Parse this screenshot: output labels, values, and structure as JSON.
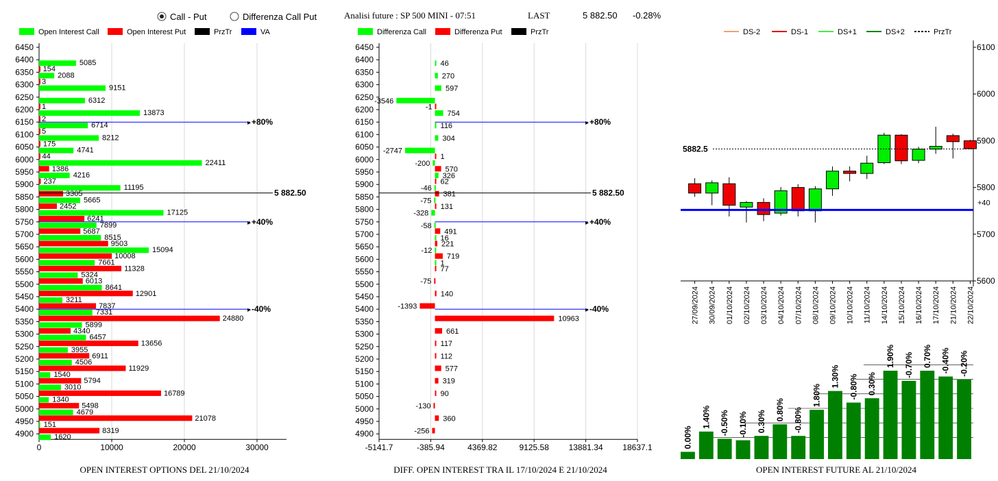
{
  "header": {
    "radio_options": [
      "Call - Put",
      "Differenza Call Put"
    ],
    "selected_radio": 0,
    "title": "Analisi future : SP 500 MINI - 07:51",
    "last_label": "LAST",
    "last_value": "5 882.50",
    "change": "-0.28%"
  },
  "colors": {
    "call": "#00ff00",
    "put": "#ff0000",
    "prztr": "#000000",
    "va": "#0000ff",
    "candle_up": "#00ee00",
    "candle_down": "#ee0000",
    "future_bar": "#008000"
  },
  "chart_data": [
    {
      "type": "bar",
      "orientation": "horizontal",
      "title": "OPEN INTEREST OPTIONS DEL 21/10/2024",
      "legend": [
        "Open Interest Call",
        "Open Interest Put",
        "PrzTr",
        "VA"
      ],
      "categories": [
        6450,
        6400,
        6350,
        6300,
        6250,
        6200,
        6150,
        6100,
        6050,
        6000,
        5950,
        5900,
        5850,
        5800,
        5750,
        5700,
        5650,
        5600,
        5550,
        5500,
        5450,
        5400,
        5350,
        5300,
        5250,
        5200,
        5150,
        5100,
        5050,
        5000,
        4950,
        4900
      ],
      "series": [
        {
          "name": "Open Interest Call",
          "values": [
            null,
            5085,
            2088,
            9151,
            6312,
            13873,
            6714,
            8212,
            4741,
            22411,
            4216,
            11195,
            5665,
            17125,
            7899,
            8515,
            15094,
            7661,
            5324,
            8641,
            3211,
            7331,
            5899,
            6457,
            3955,
            4506,
            1540,
            3010,
            1340,
            4679,
            151,
            1620
          ]
        },
        {
          "name": "Open Interest Put",
          "values": [
            null,
            154,
            3,
            null,
            1,
            2,
            5,
            175,
            44,
            1386,
            237,
            3305,
            2452,
            6241,
            5687,
            9503,
            10008,
            11328,
            6013,
            12901,
            7837,
            24880,
            4340,
            13656,
            6911,
            11929,
            5794,
            16789,
            5498,
            21078,
            8319,
            null
          ]
        }
      ],
      "reference_lines": [
        {
          "level": 6150,
          "label": "+80%",
          "color": "#0000ff"
        },
        {
          "level": 5882.5,
          "label": "5 882.50",
          "color": "#000000"
        },
        {
          "level": 5750,
          "label": "+40%",
          "color": "#0000ff"
        },
        {
          "level": 5400,
          "label": "-40%",
          "color": "#0000ff"
        }
      ],
      "xticks": [
        0,
        10000,
        20000,
        30000
      ],
      "xlim": [
        0,
        35000
      ]
    },
    {
      "type": "bar",
      "orientation": "horizontal",
      "title": "DIFF. OPEN INTEREST TRA IL 17/10/2024 E 21/10/2024",
      "legend": [
        "Differenza Call",
        "Differenza Put",
        "PrzTr"
      ],
      "categories": [
        6450,
        6400,
        6350,
        6300,
        6250,
        6200,
        6150,
        6100,
        6050,
        6000,
        5950,
        5900,
        5850,
        5800,
        5750,
        5700,
        5650,
        5600,
        5550,
        5500,
        5450,
        5400,
        5350,
        5300,
        5250,
        5200,
        5150,
        5100,
        5050,
        5000,
        4950,
        4900
      ],
      "series": [
        {
          "name": "Differenza Call",
          "values": [
            null,
            46,
            270,
            597,
            -3546,
            754,
            116,
            304,
            -2747,
            -200,
            326,
            -46,
            -75,
            -328,
            -58,
            16,
            -12,
            1,
            null,
            null,
            null,
            null,
            null,
            null,
            null,
            null,
            null,
            null,
            null,
            null,
            null,
            null
          ]
        },
        {
          "name": "Differenza Put",
          "values": [
            null,
            null,
            null,
            null,
            -1,
            null,
            null,
            null,
            1,
            570,
            62,
            381,
            131,
            null,
            491,
            221,
            719,
            77,
            -75,
            140,
            -1393,
            10963,
            661,
            117,
            112,
            577,
            319,
            90,
            -130,
            360,
            -256,
            null
          ]
        }
      ],
      "reference_lines": [
        {
          "level": 6150,
          "label": "+80%",
          "color": "#0000ff"
        },
        {
          "level": 5882.5,
          "label": "5 882.50",
          "color": "#000000"
        },
        {
          "level": 5750,
          "label": "+40%",
          "color": "#0000ff"
        },
        {
          "level": 5400,
          "label": "-40%",
          "color": "#0000ff"
        }
      ],
      "xticks": [
        -5141.7,
        -385.94,
        4369.82,
        9125.58,
        13881.34,
        18637.1
      ],
      "xtick_labels": [
        "-5141.7",
        "-385.94",
        "4369.82",
        "9125.58",
        "13881.34",
        "18637.1"
      ],
      "xlim": [
        -5141.7,
        18637.1
      ]
    },
    {
      "type": "candlestick",
      "legend": [
        "DS-2",
        "DS-1",
        "DS+1",
        "DS+2",
        "PrzTr"
      ],
      "legend_colors": [
        "#f0a070",
        "#dd0000",
        "#44ee44",
        "#008000",
        "#000000"
      ],
      "categories": [
        "27/09/2024",
        "30/09/2024",
        "01/10/2024",
        "02/10/2024",
        "03/10/2024",
        "04/10/2024",
        "07/10/2024",
        "08/10/2024",
        "09/10/2024",
        "10/10/2024",
        "11/10/2024",
        "14/10/2024",
        "15/10/2024",
        "16/10/2024",
        "17/10/2024",
        "21/10/2024",
        "22/10/2024"
      ],
      "ohlc": [
        {
          "open": 5808,
          "high": 5820,
          "low": 5780,
          "close": 5788
        },
        {
          "open": 5788,
          "high": 5815,
          "low": 5762,
          "close": 5810
        },
        {
          "open": 5808,
          "high": 5822,
          "low": 5738,
          "close": 5762
        },
        {
          "open": 5758,
          "high": 5771,
          "low": 5725,
          "close": 5768
        },
        {
          "open": 5768,
          "high": 5777,
          "low": 5728,
          "close": 5742
        },
        {
          "open": 5745,
          "high": 5801,
          "low": 5740,
          "close": 5793
        },
        {
          "open": 5800,
          "high": 5807,
          "low": 5738,
          "close": 5750
        },
        {
          "open": 5750,
          "high": 5803,
          "low": 5725,
          "close": 5797
        },
        {
          "open": 5797,
          "high": 5845,
          "low": 5782,
          "close": 5835
        },
        {
          "open": 5835,
          "high": 5845,
          "low": 5813,
          "close": 5830
        },
        {
          "open": 5830,
          "high": 5868,
          "low": 5818,
          "close": 5852
        },
        {
          "open": 5853,
          "high": 5917,
          "low": 5850,
          "close": 5912
        },
        {
          "open": 5912,
          "high": 5914,
          "low": 5850,
          "close": 5857
        },
        {
          "open": 5858,
          "high": 5887,
          "low": 5852,
          "close": 5882
        },
        {
          "open": 5882,
          "high": 5930,
          "low": 5872,
          "close": 5888
        },
        {
          "open": 5911,
          "high": 5915,
          "low": 5862,
          "close": 5898
        },
        {
          "open": 5900,
          "high": 5902,
          "low": 5882,
          "close": 5883
        }
      ],
      "price_line": {
        "value": 5882.5,
        "label": "5882.5"
      },
      "va_line": {
        "value": 5752,
        "label": "+40"
      },
      "yticks": [
        5600,
        5700,
        5800,
        5900,
        6000,
        6100
      ],
      "ylim": [
        5600,
        6100
      ]
    },
    {
      "type": "bar",
      "title": "OPEN INTEREST FUTURE AL 21/10/2024",
      "labels": [
        "0.00%",
        "1.40%",
        "-0.50%",
        "-0.10%",
        "0.30%",
        "0.80%",
        "-0.80%",
        "1.80%",
        "1.30%",
        "-0.80%",
        "0.30%",
        "1.90%",
        "-0.70%",
        "0.70%",
        "-0.40%",
        "-0.20%"
      ],
      "values": [
        100.0,
        101.4,
        100.9,
        100.8,
        101.1,
        101.9,
        101.1,
        102.9,
        104.2,
        103.4,
        103.7,
        105.6,
        104.9,
        105.6,
        105.2,
        105.0
      ],
      "ylim": [
        99.5,
        106.5
      ]
    }
  ]
}
